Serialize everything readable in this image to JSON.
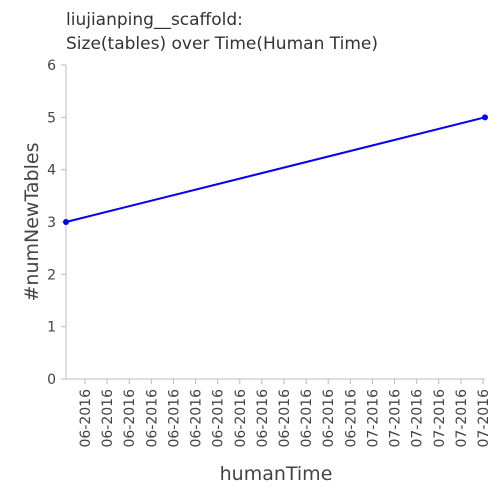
{
  "chart_data": {
    "type": "line",
    "title_lines": [
      "liujianping__scaffold:",
      "Size(tables) over Time(Human Time)"
    ],
    "xlabel": "humanTime",
    "ylabel": "#numNewTables",
    "x_tick_labels": [
      "06-2016",
      "06-2016",
      "06-2016",
      "06-2016",
      "06-2016",
      "06-2016",
      "06-2016",
      "06-2016",
      "06-2016",
      "06-2016",
      "06-2016",
      "06-2016",
      "06-2016",
      "07-2016",
      "07-2016",
      "07-2016",
      "07-2016",
      "07-2016",
      "07-2016"
    ],
    "y_ticks": [
      0,
      1,
      2,
      3,
      4,
      5,
      6
    ],
    "ylim": [
      0,
      6
    ],
    "grid": false,
    "series": [
      {
        "color": "#0000ff",
        "points": [
          {
            "x": "06-2016",
            "y": 3
          },
          {
            "x": "07-2016",
            "y": 5
          }
        ]
      }
    ]
  }
}
